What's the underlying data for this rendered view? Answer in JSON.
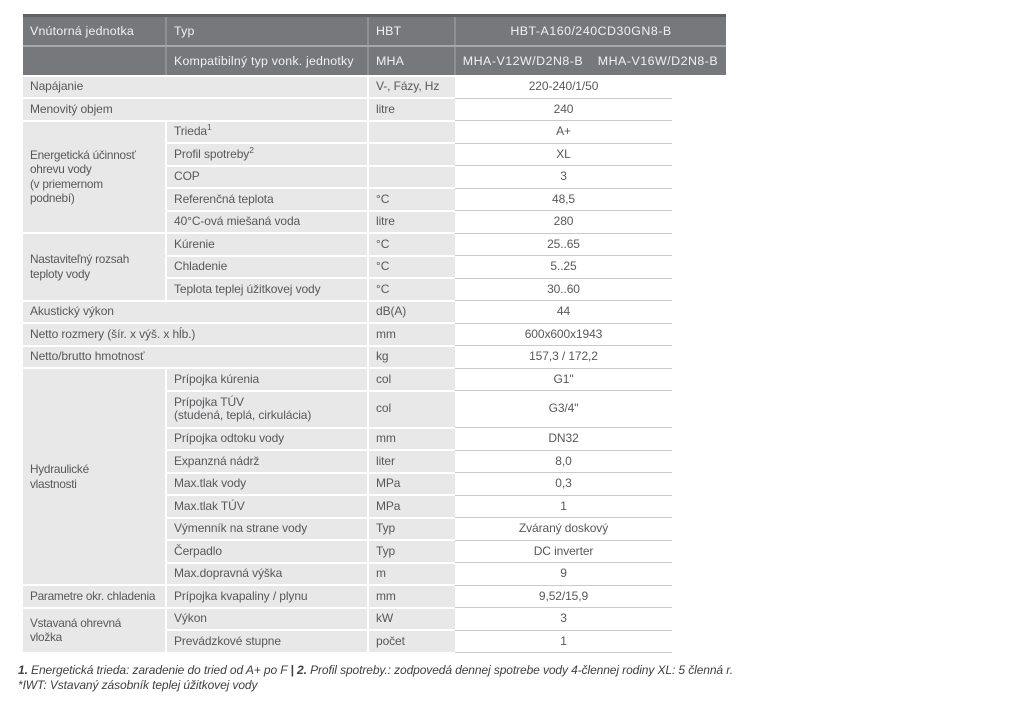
{
  "colors": {
    "header_bg": "#77787b",
    "header_top_edge": "#606164",
    "cell_bg": "#e8e8e9",
    "value_underline": "#c9cacb",
    "body_text": "#57585a",
    "header_text": "#f0f1f2"
  },
  "table": {
    "header": {
      "indoor_unit": "Vnútorná jednotka",
      "type_label": "Typ",
      "hbt": "HBT",
      "model": "HBT-A160/240CD30GN8-B",
      "compat_label": "Kompatibilný typ vonk. jednotky",
      "mha": "MHA",
      "model_a": "MHA-V12W/D2N8-B",
      "model_b": "MHA-V16W/D2N8-B"
    },
    "rows": [
      {
        "type": "merged",
        "label": [
          "Napájanie"
        ],
        "unit": "V-, Fázy, Hz",
        "value": "220-240/1/50"
      },
      {
        "type": "merged",
        "label": [
          "Menovitý objem"
        ],
        "unit": "litre",
        "value": "240"
      },
      {
        "type": "grouped",
        "group": [
          "Energetická účinnosť",
          "ohrevu vody",
          "(v priemernom",
          "podnebí)"
        ],
        "group_span": 5,
        "label": [
          "Trieda"
        ],
        "sup": "1",
        "unit": "",
        "value": "A+"
      },
      {
        "type": "grouped",
        "label": [
          "Profil spotreby"
        ],
        "sup": "2",
        "unit": "",
        "value": "XL"
      },
      {
        "type": "grouped",
        "label": [
          "COP"
        ],
        "unit": "",
        "value": "3"
      },
      {
        "type": "grouped",
        "label": [
          "Referenčná teplota"
        ],
        "unit": "°C",
        "value": "48,5"
      },
      {
        "type": "grouped",
        "label": [
          "40°C-ová miešaná voda"
        ],
        "unit": "litre",
        "value": "280"
      },
      {
        "type": "grouped",
        "group": [
          "Nastaviteľný rozsah",
          "teploty vody"
        ],
        "group_span": 3,
        "label": [
          "Kúrenie"
        ],
        "unit": "°C",
        "value": "25..65"
      },
      {
        "type": "grouped",
        "label": [
          "Chladenie"
        ],
        "unit": "°C",
        "value": "5..25"
      },
      {
        "type": "grouped",
        "label": [
          "Teplota teplej úžitkovej vody"
        ],
        "unit": "°C",
        "value": "30..60"
      },
      {
        "type": "merged",
        "label": [
          "Akustický výkon"
        ],
        "unit": "dB(A)",
        "value": "44"
      },
      {
        "type": "merged",
        "label": [
          "Netto rozmery (šír. x výš. x hĺb.)"
        ],
        "unit": "mm",
        "value": "600x600x1943"
      },
      {
        "type": "merged",
        "label": [
          "Netto/brutto hmotnosť"
        ],
        "unit": "kg",
        "value": "157,3 / 172,2"
      },
      {
        "type": "grouped",
        "group": [
          "Hydraulické",
          "vlastnosti"
        ],
        "group_span": 9,
        "label": [
          "Prípojka kúrenia"
        ],
        "unit": "col",
        "value": "G1\""
      },
      {
        "type": "grouped",
        "label": [
          "Prípojka TÚV",
          "(studená, teplá, cirkulácia)"
        ],
        "unit": "col",
        "value": "G3/4\"",
        "tall": true
      },
      {
        "type": "grouped",
        "label": [
          "Prípojka odtoku vody"
        ],
        "unit": "mm",
        "value": "DN32"
      },
      {
        "type": "grouped",
        "label": [
          "Expanzná nádrž"
        ],
        "unit": "liter",
        "value": "8,0"
      },
      {
        "type": "grouped",
        "label": [
          "Max.tlak vody"
        ],
        "unit": "MPa",
        "value": "0,3"
      },
      {
        "type": "grouped",
        "label": [
          "Max.tlak TÚV"
        ],
        "unit": "MPa",
        "value": "1"
      },
      {
        "type": "grouped",
        "label": [
          "Výmenník na strane vody"
        ],
        "unit": "Typ",
        "value": "Zváraný doskový"
      },
      {
        "type": "grouped",
        "label": [
          "Čerpadlo"
        ],
        "unit": "Typ",
        "value": "DC inverter"
      },
      {
        "type": "grouped",
        "label": [
          "Max.dopravná výška"
        ],
        "unit": "m",
        "value": "9"
      },
      {
        "type": "grouped",
        "group": [
          "Parametre okr. chladenia"
        ],
        "group_span": 1,
        "label": [
          "Prípojka kvapaliny / plynu"
        ],
        "unit": "mm",
        "value": "9,52/15,9"
      },
      {
        "type": "grouped",
        "group": [
          "Vstavaná ohrevná",
          "vložka"
        ],
        "group_span": 2,
        "label": [
          "Výkon"
        ],
        "unit": "kW",
        "value": "3"
      },
      {
        "type": "grouped",
        "label": [
          "Prevádzkové stupne"
        ],
        "unit": "počet",
        "value": "1"
      }
    ]
  },
  "footnotes": {
    "n1": "1.",
    "t1": "Energetická trieda: zaradenie do tried od A+ po F",
    "sep": "|",
    "n2": "2.",
    "t2": "Profil spotreby.: zodpovedá dennej spotrebe vody 4-člennej rodiny  XL: 5 členná r.",
    "iwt": "*IWT: Vstavaný zásobník teplej úžitkovej vody"
  }
}
